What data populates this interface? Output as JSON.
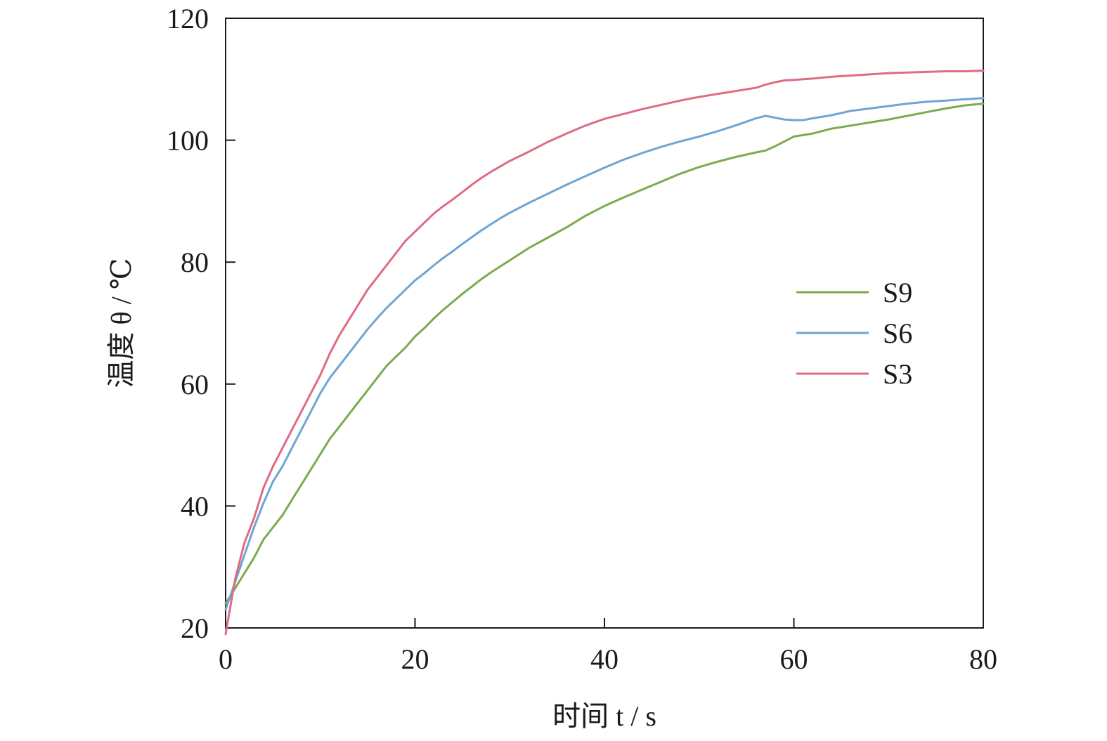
{
  "chart_data": {
    "type": "line",
    "xlabel": "时间 t / s",
    "ylabel": "温度 θ / ℃",
    "xlim": [
      0,
      80
    ],
    "ylim": [
      20,
      120
    ],
    "xticks": [
      0,
      20,
      40,
      60,
      80
    ],
    "yticks": [
      20,
      40,
      60,
      80,
      100,
      120
    ],
    "grid": false,
    "legend_position": "right",
    "series": [
      {
        "name": "S9",
        "color": "#7bab4f",
        "x": [
          0,
          1,
          2,
          3,
          4,
          5,
          6,
          7,
          8,
          9,
          10,
          11,
          12,
          13,
          14,
          15,
          16,
          17,
          18,
          19,
          20,
          21,
          22,
          23,
          24,
          25,
          26,
          27,
          28,
          29,
          30,
          32,
          34,
          36,
          38,
          40,
          42,
          44,
          46,
          48,
          50,
          52,
          54,
          56,
          57,
          58,
          60,
          62,
          64,
          66,
          68,
          70,
          72,
          74,
          76,
          78,
          80
        ],
        "values": [
          24,
          26.5,
          29,
          31.5,
          34.5,
          36.5,
          38.5,
          41,
          43.5,
          46,
          48.5,
          51,
          53,
          55,
          57,
          59,
          61,
          63,
          64.5,
          66,
          67.8,
          69.2,
          70.8,
          72.2,
          73.5,
          74.8,
          76,
          77.2,
          78.3,
          79.3,
          80.3,
          82.3,
          84,
          85.7,
          87.6,
          89.2,
          90.6,
          91.9,
          93.2,
          94.5,
          95.6,
          96.5,
          97.3,
          98,
          98.3,
          99,
          100.6,
          101.1,
          101.9,
          102.4,
          102.9,
          103.4,
          104,
          104.6,
          105.2,
          105.7,
          106
        ]
      },
      {
        "name": "S6",
        "color": "#6fa5d3",
        "x": [
          0,
          1,
          2,
          3,
          4,
          5,
          6,
          7,
          8,
          9,
          10,
          11,
          12,
          13,
          14,
          15,
          16,
          17,
          18,
          19,
          20,
          21,
          22,
          23,
          24,
          25,
          26,
          27,
          28,
          29,
          30,
          32,
          34,
          36,
          38,
          40,
          42,
          44,
          46,
          48,
          50,
          52,
          54,
          56,
          57,
          58,
          59,
          60,
          61,
          62,
          64,
          66,
          68,
          70,
          72,
          74,
          76,
          78,
          80
        ],
        "values": [
          23,
          27.5,
          32,
          36.5,
          40.5,
          44,
          46.5,
          49.5,
          52.5,
          55.5,
          58.5,
          61,
          63,
          65,
          67,
          69,
          70.8,
          72.5,
          74,
          75.5,
          77,
          78.2,
          79.5,
          80.7,
          81.8,
          83,
          84.1,
          85.2,
          86.2,
          87.2,
          88.1,
          89.7,
          91.2,
          92.7,
          94.1,
          95.5,
          96.8,
          97.9,
          98.9,
          99.8,
          100.6,
          101.5,
          102.5,
          103.6,
          104,
          103.7,
          103.4,
          103.3,
          103.3,
          103.6,
          104.1,
          104.8,
          105.2,
          105.6,
          106,
          106.3,
          106.5,
          106.7,
          106.9
        ]
      },
      {
        "name": "S3",
        "color": "#e06b82",
        "x": [
          0,
          1,
          2,
          3,
          4,
          5,
          6,
          7,
          8,
          9,
          10,
          11,
          12,
          13,
          14,
          15,
          16,
          17,
          18,
          19,
          20,
          21,
          22,
          23,
          24,
          25,
          26,
          27,
          28,
          29,
          30,
          32,
          34,
          36,
          38,
          40,
          42,
          44,
          46,
          48,
          50,
          52,
          54,
          56,
          57,
          58,
          59,
          60,
          62,
          64,
          66,
          68,
          70,
          72,
          74,
          76,
          78,
          80
        ],
        "values": [
          19,
          28,
          34,
          38,
          43,
          46.5,
          49.5,
          52.5,
          55.5,
          58.5,
          61.5,
          65,
          68,
          70.5,
          73,
          75.5,
          77.5,
          79.5,
          81.5,
          83.5,
          85,
          86.5,
          88,
          89.2,
          90.3,
          91.5,
          92.7,
          93.8,
          94.8,
          95.7,
          96.6,
          98.1,
          99.7,
          101.1,
          102.4,
          103.5,
          104.3,
          105.1,
          105.8,
          106.5,
          107.1,
          107.6,
          108.1,
          108.6,
          109.1,
          109.5,
          109.8,
          109.9,
          110.1,
          110.4,
          110.6,
          110.8,
          111,
          111.1,
          111.2,
          111.3,
          111.3,
          111.4
        ]
      }
    ]
  }
}
